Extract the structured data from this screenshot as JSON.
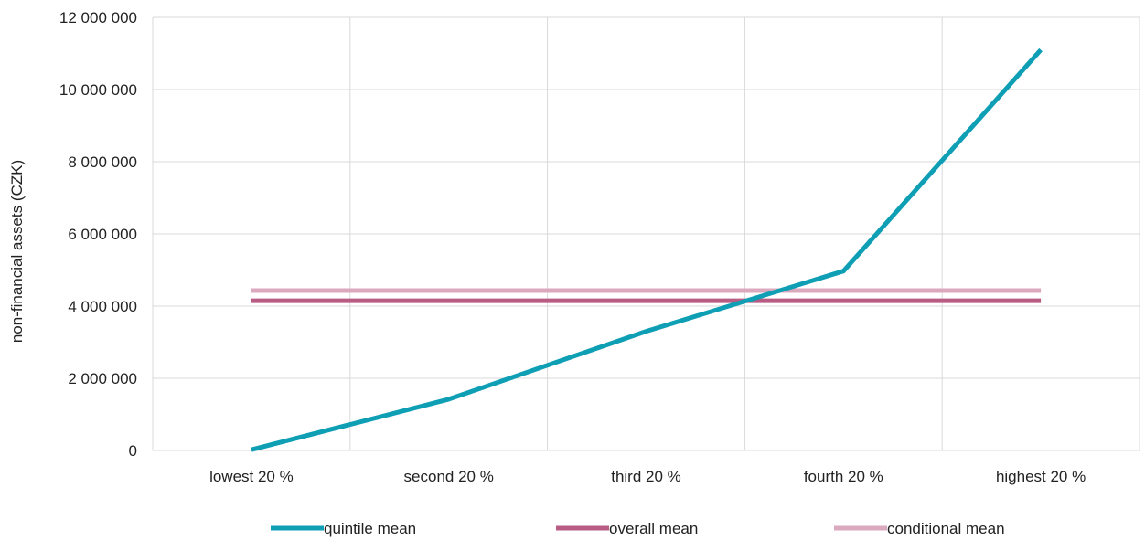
{
  "chart_data": {
    "type": "line",
    "categories": [
      "lowest 20 %",
      "second 20 %",
      "third 20 %",
      "fourth 20 %",
      "highest 20 %"
    ],
    "ylabel": "non-financial assets (CZK)",
    "ylim": [
      0,
      12000000
    ],
    "y_ticks": [
      0,
      2000000,
      4000000,
      6000000,
      8000000,
      10000000,
      12000000
    ],
    "y_tick_labels": [
      "0",
      "2 000 000",
      "4 000 000",
      "6 000 000",
      "8 000 000",
      "10 000 000",
      "12 000 000"
    ],
    "grid": true,
    "legend_position": "bottom",
    "series": [
      {
        "name": "quintile mean",
        "color": "#0e9fb5",
        "values": [
          20000,
          1420000,
          3300000,
          4970000,
          11100000
        ]
      },
      {
        "name": "overall mean",
        "color": "#b85c83",
        "values": [
          4150000,
          4150000,
          4150000,
          4150000,
          4150000
        ]
      },
      {
        "name": "conditional mean",
        "color": "#dba9bd",
        "values": [
          4430000,
          4430000,
          4430000,
          4430000,
          4430000
        ]
      }
    ]
  }
}
